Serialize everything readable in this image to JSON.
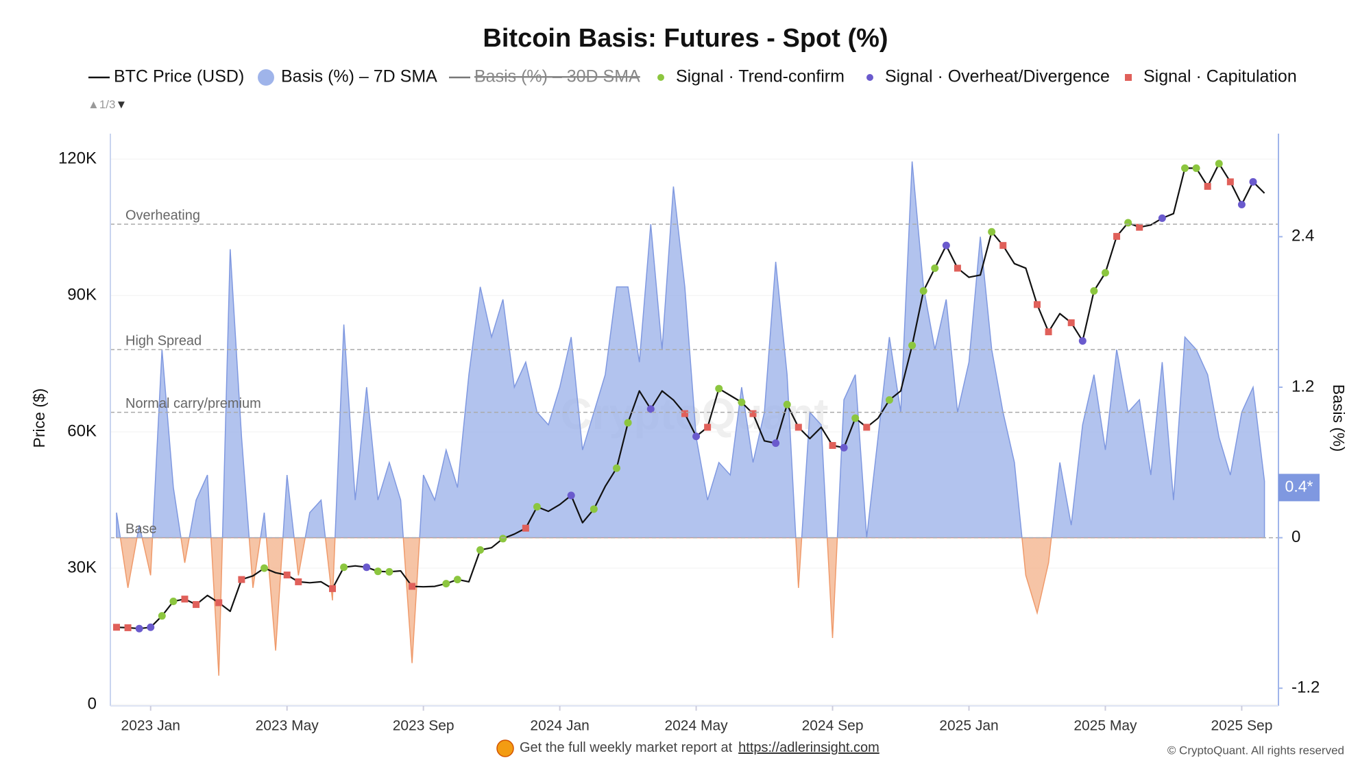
{
  "chart_data": {
    "type": "combo",
    "title": "Bitcoin Basis: Futures - Spot (%)",
    "y_label": "Price ($)",
    "y2_label": "Basis (%)",
    "legend_page": "1/3",
    "watermark": "CryptoQuant",
    "categories": [
      null,
      null,
      null,
      "2023 Jan",
      null,
      null,
      null,
      null,
      null,
      null,
      null,
      null,
      null,
      null,
      null,
      "2023 May",
      null,
      null,
      null,
      null,
      null,
      null,
      null,
      null,
      null,
      null,
      null,
      "2023 Sep",
      null,
      null,
      null,
      null,
      null,
      null,
      null,
      null,
      null,
      null,
      null,
      "2024 Jan",
      null,
      null,
      null,
      null,
      null,
      null,
      null,
      null,
      null,
      null,
      null,
      "2024 May",
      null,
      null,
      null,
      null,
      null,
      null,
      null,
      null,
      null,
      null,
      null,
      "2024 Sep",
      null,
      null,
      null,
      null,
      null,
      null,
      null,
      null,
      null,
      null,
      null,
      "2025 Jan",
      null,
      null,
      null,
      null,
      null,
      null,
      null,
      null,
      null,
      null,
      null,
      "2025 May",
      null,
      null,
      null,
      null,
      null,
      null,
      null,
      null,
      null,
      null,
      null,
      "2025 Sep",
      null,
      null
    ],
    "ylim": [
      0,
      125000
    ],
    "yticks": [
      0,
      {
        "value": 30000,
        "label": "30K"
      },
      {
        "value": 60000,
        "label": "60K"
      },
      {
        "value": 90000,
        "label": "90K"
      },
      {
        "value": 120000,
        "label": "120K"
      }
    ],
    "y2lim": [
      -1.33,
      3.2
    ],
    "y2ticks": [
      -1.2,
      0,
      1.2,
      2.4
    ],
    "grid": true,
    "reference_lines": [
      {
        "value": 2.5,
        "label": "Overheating"
      },
      {
        "value": 1.5,
        "label": "High Spread"
      },
      {
        "value": 1.0,
        "label": "Normal carry/premium"
      },
      {
        "value": 0,
        "label": "Base"
      }
    ],
    "last_value": {
      "value": 0.4,
      "label": "0.4*"
    },
    "series": [
      {
        "name": "BTC Price (USD)",
        "kind": "line",
        "color": "#111111",
        "values": [
          17000,
          16900,
          16700,
          17000,
          19500,
          22700,
          23200,
          22000,
          24000,
          22400,
          20500,
          27500,
          28300,
          30000,
          29000,
          28500,
          27000,
          26800,
          27000,
          25500,
          30200,
          30500,
          30200,
          29300,
          29200,
          29400,
          26000,
          25900,
          26000,
          26600,
          27500,
          27000,
          34000,
          34500,
          36500,
          37500,
          38800,
          43500,
          42500,
          44000,
          46000,
          40000,
          43000,
          48000,
          52000,
          62000,
          69000,
          65000,
          69000,
          67000,
          64000,
          59000,
          61000,
          69500,
          68000,
          66500,
          64000,
          58000,
          57500,
          66000,
          61000,
          58500,
          61000,
          57000,
          56500,
          63000,
          61000,
          63000,
          67000,
          69000,
          79000,
          91000,
          96000,
          101000,
          96000,
          94000,
          94500,
          104000,
          101000,
          97000,
          96000,
          88000,
          82000,
          86000,
          84000,
          80000,
          91000,
          95000,
          103000,
          106000,
          105000,
          105500,
          107000,
          108000,
          118000,
          118000,
          114000,
          119000,
          115000,
          110000,
          115000,
          112500
        ]
      },
      {
        "name": "Basis (%) – 7D SMA",
        "kind": "area",
        "axis": "y2",
        "color": "#9fb4ea",
        "negative_color": "#f4b58f",
        "values": [
          0.2,
          -0.4,
          0.1,
          -0.3,
          1.5,
          0.4,
          -0.2,
          0.3,
          0.5,
          -1.1,
          2.3,
          0.8,
          -0.4,
          0.2,
          -0.9,
          0.5,
          -0.3,
          0.2,
          0.3,
          -0.5,
          1.7,
          0.3,
          1.2,
          0.3,
          0.6,
          0.3,
          -1.0,
          0.5,
          0.3,
          0.7,
          0.4,
          1.3,
          2.0,
          1.6,
          1.9,
          1.2,
          1.4,
          1.0,
          0.9,
          1.2,
          1.6,
          0.7,
          1.0,
          1.3,
          2.0,
          2.0,
          1.4,
          2.5,
          1.5,
          2.8,
          2.0,
          0.8,
          0.3,
          0.6,
          0.5,
          1.2,
          0.6,
          1.0,
          2.2,
          1.3,
          -0.4,
          1.0,
          0.9,
          -0.8,
          1.1,
          1.3,
          0.0,
          0.8,
          1.6,
          1.0,
          3.0,
          2.0,
          1.5,
          1.9,
          1.0,
          1.4,
          2.4,
          1.5,
          1.0,
          0.6,
          -0.3,
          -0.6,
          -0.2,
          0.6,
          0.1,
          0.9,
          1.3,
          0.7,
          1.5,
          1.0,
          1.1,
          0.5,
          1.4,
          0.3,
          1.6,
          1.5,
          1.3,
          0.8,
          0.5,
          1.0,
          1.2,
          0.45
        ]
      },
      {
        "name": "Signal · Trend-confirm",
        "kind": "scatter",
        "marker": "circle",
        "color": "#8cc63f",
        "values": [
          null,
          null,
          null,
          null,
          19500,
          22700,
          null,
          null,
          null,
          null,
          null,
          null,
          null,
          30000,
          null,
          null,
          null,
          null,
          null,
          null,
          30200,
          null,
          null,
          29300,
          29200,
          null,
          null,
          null,
          null,
          26600,
          27500,
          null,
          34000,
          null,
          36500,
          null,
          null,
          43500,
          null,
          null,
          null,
          null,
          43000,
          null,
          52000,
          62000,
          null,
          null,
          null,
          null,
          null,
          null,
          null,
          69500,
          null,
          66500,
          null,
          null,
          null,
          66000,
          null,
          null,
          null,
          null,
          null,
          63000,
          null,
          null,
          67000,
          null,
          79000,
          91000,
          96000,
          null,
          null,
          null,
          null,
          104000,
          null,
          null,
          null,
          null,
          null,
          null,
          null,
          null,
          91000,
          95000,
          null,
          106000,
          null,
          null,
          null,
          null,
          118000,
          118000,
          null,
          119000,
          null,
          null,
          null,
          null
        ]
      },
      {
        "name": "Signal · Overheat/Divergence",
        "kind": "scatter",
        "marker": "circle",
        "color": "#6a5acd",
        "values": [
          null,
          null,
          16700,
          17000,
          null,
          null,
          null,
          null,
          null,
          null,
          null,
          null,
          null,
          null,
          null,
          null,
          null,
          null,
          null,
          null,
          null,
          null,
          30200,
          null,
          null,
          null,
          null,
          null,
          null,
          null,
          null,
          null,
          null,
          null,
          null,
          null,
          null,
          null,
          null,
          null,
          46000,
          null,
          null,
          null,
          null,
          null,
          null,
          65000,
          null,
          null,
          null,
          59000,
          null,
          null,
          null,
          null,
          null,
          null,
          57500,
          null,
          null,
          null,
          null,
          null,
          56500,
          null,
          null,
          null,
          null,
          null,
          null,
          null,
          null,
          101000,
          null,
          null,
          null,
          null,
          null,
          null,
          null,
          null,
          null,
          null,
          null,
          80000,
          null,
          null,
          null,
          null,
          null,
          null,
          107000,
          null,
          null,
          null,
          null,
          null,
          null,
          110000,
          115000,
          null
        ]
      },
      {
        "name": "Signal · Capitulation",
        "kind": "scatter",
        "marker": "square",
        "color": "#e0605a",
        "values": [
          17000,
          16900,
          null,
          null,
          null,
          null,
          23200,
          22000,
          null,
          22400,
          null,
          27500,
          null,
          null,
          null,
          28500,
          27000,
          null,
          null,
          25500,
          null,
          null,
          null,
          null,
          null,
          null,
          26000,
          null,
          null,
          null,
          null,
          null,
          null,
          null,
          null,
          null,
          38800,
          null,
          null,
          null,
          null,
          null,
          null,
          null,
          null,
          null,
          null,
          null,
          null,
          null,
          64000,
          null,
          61000,
          null,
          null,
          null,
          64000,
          null,
          null,
          null,
          61000,
          null,
          null,
          57000,
          null,
          null,
          61000,
          null,
          null,
          null,
          null,
          null,
          null,
          null,
          96000,
          null,
          null,
          null,
          101000,
          null,
          null,
          88000,
          82000,
          null,
          84000,
          null,
          null,
          null,
          103000,
          null,
          105000,
          null,
          null,
          null,
          null,
          null,
          114000,
          null,
          115000,
          null,
          null,
          null
        ]
      }
    ],
    "hidden_series": [
      {
        "name": "Basis (%) – 30D SMA",
        "color": "#777777"
      }
    ],
    "footer": {
      "text": "Get the full weekly market report at",
      "link": "https://adlerinsight.com",
      "copyright": "© CryptoQuant. All rights reserved"
    }
  }
}
